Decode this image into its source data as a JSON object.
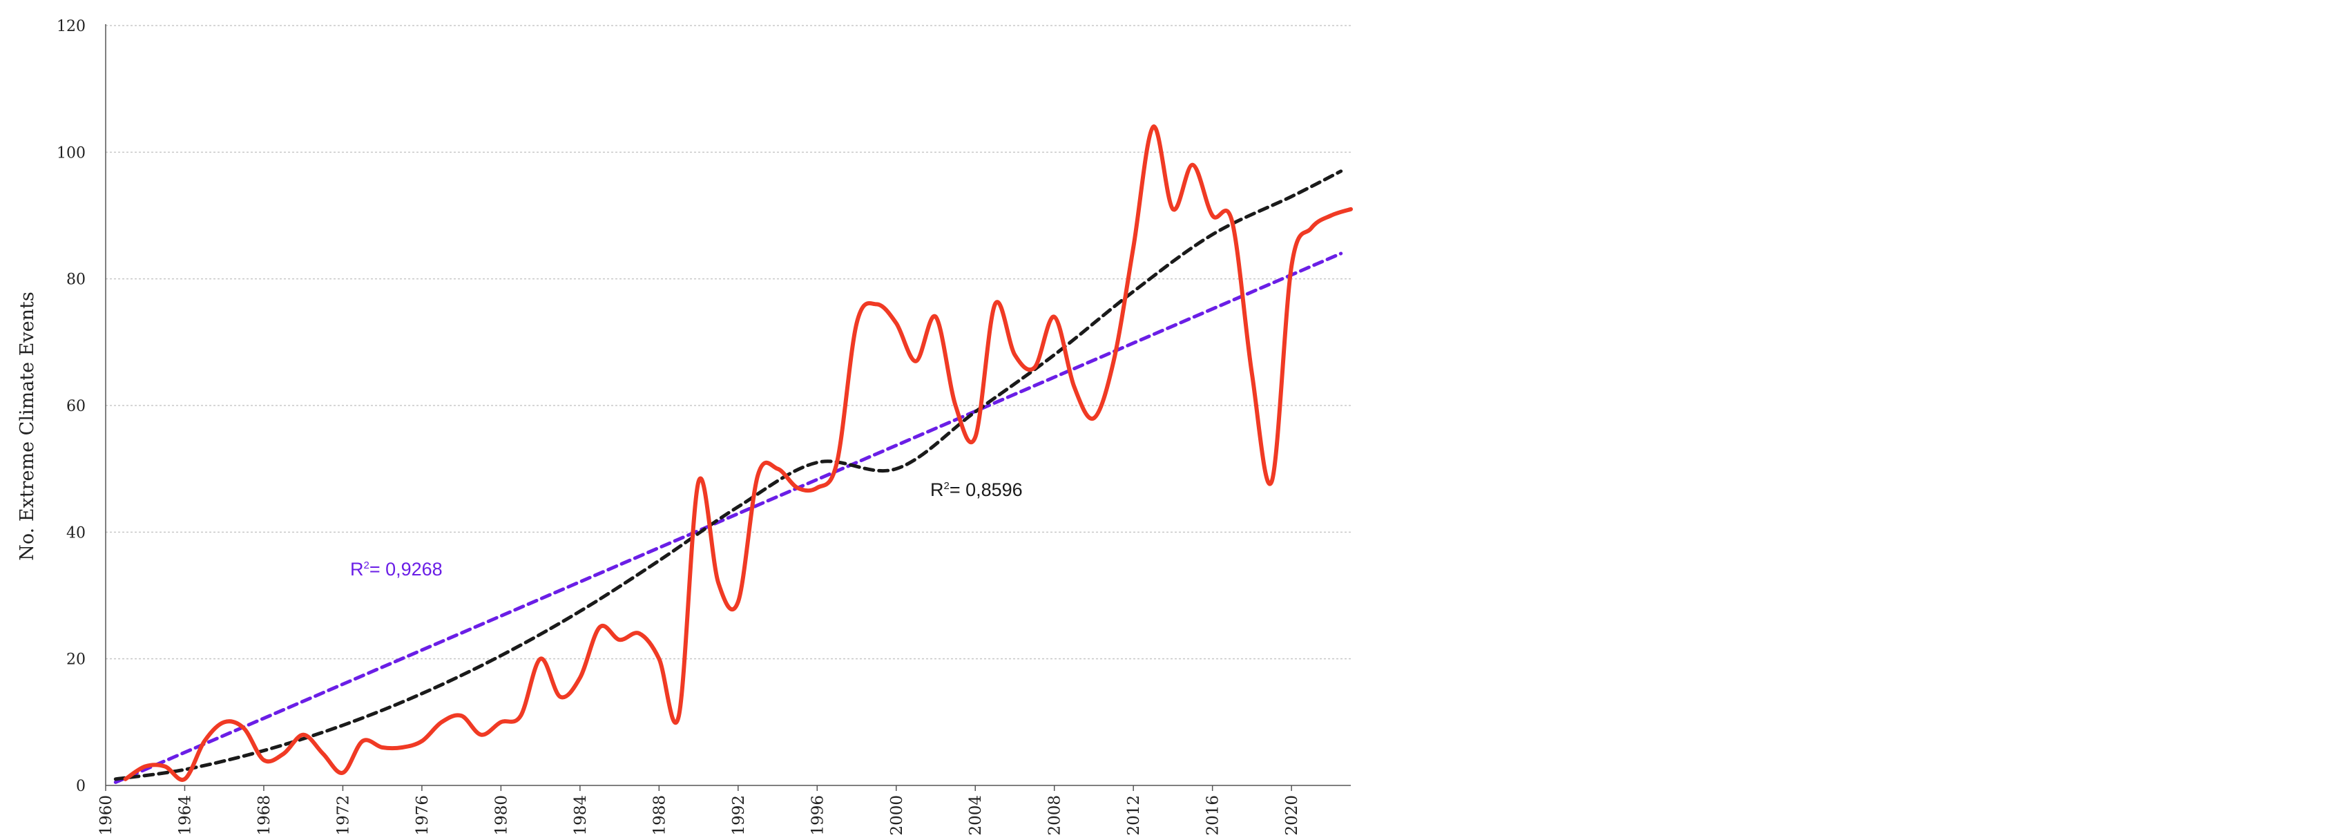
{
  "chart_data": {
    "type": "line",
    "title": "",
    "xlabel": "",
    "ylabel": "No. Extreme Climate Events",
    "xlim": [
      1960,
      2023
    ],
    "ylim": [
      0,
      120
    ],
    "y_ticks": [
      0,
      20,
      40,
      60,
      80,
      100,
      120
    ],
    "x_ticks": [
      1960,
      1964,
      1968,
      1972,
      1976,
      1980,
      1984,
      1988,
      1992,
      1996,
      2000,
      2004,
      2008,
      2012,
      2016,
      2020
    ],
    "grid": "horizontal dotted",
    "series": [
      {
        "color": "#f03a24",
        "x": [
          1961,
          1962,
          1963,
          1964,
          1965,
          1966,
          1967,
          1968,
          1969,
          1970,
          1971,
          1972,
          1973,
          1974,
          1975,
          1976,
          1977,
          1978,
          1979,
          1980,
          1981,
          1982,
          1983,
          1984,
          1985,
          1986,
          1987,
          1988,
          1989,
          1990,
          1991,
          1992,
          1993,
          1994,
          1995,
          1996,
          1997,
          1998,
          1999,
          2000,
          2001,
          2002,
          2003,
          2004,
          2005,
          2006,
          2007,
          2008,
          2009,
          2010,
          2011,
          2012,
          2013,
          2014,
          2015,
          2016,
          2017,
          2018,
          2019,
          2020,
          2021,
          2022,
          2023
        ],
        "y": [
          1,
          3,
          3,
          1,
          7,
          10,
          9,
          4,
          5,
          8,
          5,
          2,
          7,
          6,
          6,
          7,
          10,
          11,
          8,
          10,
          11,
          20,
          14,
          17,
          25,
          23,
          24,
          20,
          11,
          48,
          32,
          29,
          49,
          50,
          47,
          47,
          51,
          73,
          76,
          73,
          67,
          74,
          60,
          55,
          76,
          68,
          66,
          74,
          63,
          58,
          67,
          85,
          104,
          91,
          98,
          90,
          89,
          65,
          48,
          82,
          88,
          90,
          91
        ]
      },
      {
        "color": "#6a1ee6",
        "style": "dashed",
        "x": [
          1960.5,
          2022.5
        ],
        "y": [
          0.5,
          84
        ],
        "annotation": "R²= 0,9268"
      },
      {
        "color": "#1a1a1a",
        "style": "dashed",
        "x": [
          1960.5,
          1964,
          1968,
          1972,
          1976,
          1980,
          1984,
          1988,
          1992,
          1996,
          2000,
          2004,
          2008,
          2012,
          2016,
          2020,
          2022.5
        ],
        "y": [
          1,
          2.5,
          5.5,
          9.5,
          14.5,
          20.5,
          27.5,
          35.5,
          44,
          51,
          50,
          59,
          68,
          78,
          87,
          93,
          97
        ],
        "annotation": "R²= 0,8596"
      }
    ],
    "annotations": [
      {
        "text_main": "R",
        "text_sup": "2",
        "text_rest": "= 0,9268",
        "color": "#6a1ee6"
      },
      {
        "text_main": "R",
        "text_sup": "2",
        "text_rest": "= 0,8596",
        "color": "#1a1a1a"
      }
    ]
  }
}
